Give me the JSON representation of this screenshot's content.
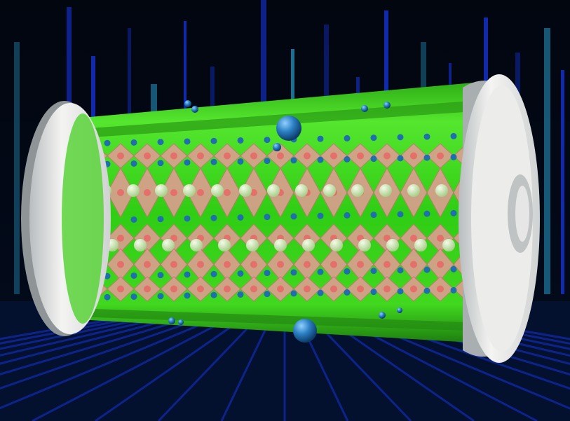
{
  "image": {
    "subject": "battery-cell-crystal-lattice",
    "colors": {
      "background_top": "#02060f",
      "background_bottom": "#030b1e",
      "light_streak": "#1a3cff",
      "light_streak_cyan": "#2aa8d8",
      "tube_green": "#39d21f",
      "tube_green_dark": "#1f8f12",
      "octahedron_pink": "#e79a98",
      "octahedron_edge": "#c77472",
      "anion_blue": "#1f6fb0",
      "cation_pale_green": "#cfe8b4",
      "cap_silver": "#e9e9e6",
      "cap_shadow": "#9ea3a6"
    },
    "elements": {
      "left_cap": "silver-end-cap",
      "right_cap": "silver-end-cap-with-terminal",
      "cylinder": "translucent-green-cylinder",
      "lattice": "perovskite-octahedral-layers",
      "ions": "floating-blue-spheres"
    }
  }
}
